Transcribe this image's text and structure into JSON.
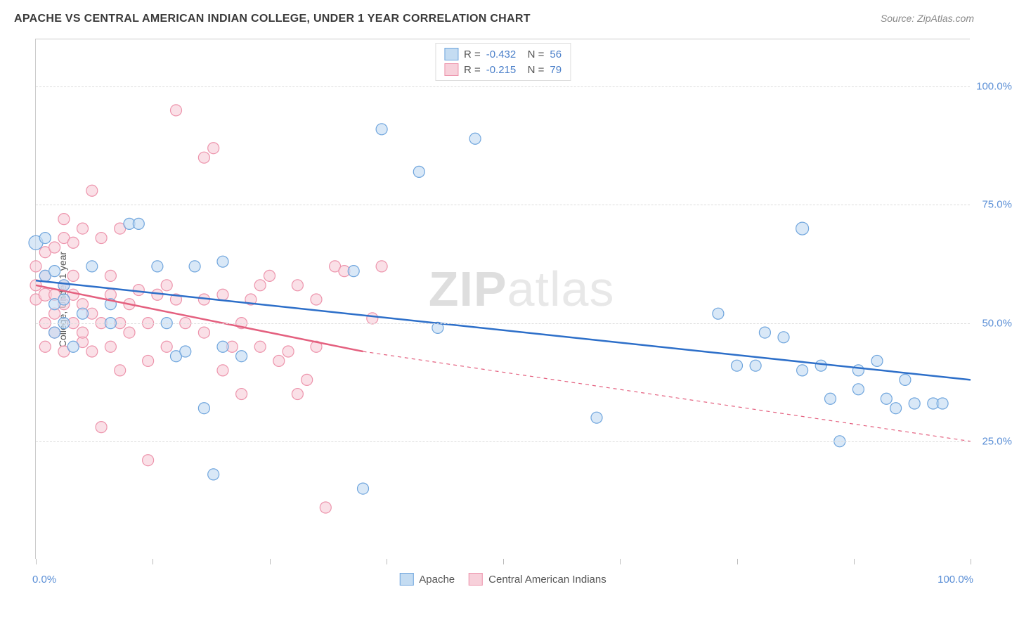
{
  "header": {
    "title": "APACHE VS CENTRAL AMERICAN INDIAN COLLEGE, UNDER 1 YEAR CORRELATION CHART",
    "source": "Source: ZipAtlas.com"
  },
  "chart": {
    "type": "scatter",
    "yaxis_title": "College, Under 1 year",
    "watermark": "ZIPatlas",
    "background_color": "#ffffff",
    "grid_color": "#dddddd",
    "axis_color": "#cccccc",
    "label_color": "#5b8fd6",
    "xlim": [
      0,
      100
    ],
    "ylim": [
      0,
      110
    ],
    "yticks": [
      25,
      50,
      75,
      100
    ],
    "ytick_labels": [
      "25.0%",
      "50.0%",
      "75.0%",
      "100.0%"
    ],
    "xticks": [
      0,
      12.5,
      25,
      37.5,
      50,
      62.5,
      75,
      87.5,
      100
    ],
    "xaxis_label_left": "0.0%",
    "xaxis_label_right": "100.0%",
    "series": {
      "apache": {
        "label": "Apache",
        "fill": "#c4dcf2",
        "stroke": "#6fa5dd",
        "line_color": "#2d6fc9",
        "R": "-0.432",
        "N": "56",
        "regression": {
          "x1": 0,
          "y1": 59,
          "x2": 100,
          "y2": 38
        },
        "points": [
          [
            0,
            67,
            14
          ],
          [
            1,
            60,
            10
          ],
          [
            1,
            68,
            10
          ],
          [
            2,
            48,
            10
          ],
          [
            2,
            54,
            10
          ],
          [
            2,
            61,
            10
          ],
          [
            3,
            50,
            10
          ],
          [
            3,
            55,
            10
          ],
          [
            3,
            58,
            10
          ],
          [
            4,
            45,
            10
          ],
          [
            5,
            52,
            10
          ],
          [
            6,
            62,
            10
          ],
          [
            8,
            50,
            10
          ],
          [
            8,
            54,
            10
          ],
          [
            10,
            71,
            10
          ],
          [
            11,
            71,
            10
          ],
          [
            13,
            62,
            10
          ],
          [
            14,
            50,
            10
          ],
          [
            15,
            43,
            10
          ],
          [
            16,
            44,
            10
          ],
          [
            17,
            62,
            10
          ],
          [
            18,
            32,
            10
          ],
          [
            19,
            18,
            10
          ],
          [
            20,
            63,
            10
          ],
          [
            20,
            45,
            10
          ],
          [
            22,
            43,
            10
          ],
          [
            34,
            61,
            10
          ],
          [
            35,
            15,
            10
          ],
          [
            37,
            91,
            10
          ],
          [
            41,
            82,
            10
          ],
          [
            43,
            49,
            10
          ],
          [
            47,
            89,
            10
          ],
          [
            60,
            30,
            10
          ],
          [
            73,
            52,
            10
          ],
          [
            75,
            41,
            10
          ],
          [
            77,
            41,
            10
          ],
          [
            78,
            48,
            10
          ],
          [
            80,
            47,
            10
          ],
          [
            82,
            40,
            10
          ],
          [
            82,
            70,
            12
          ],
          [
            84,
            41,
            10
          ],
          [
            85,
            34,
            10
          ],
          [
            86,
            25,
            10
          ],
          [
            88,
            36,
            10
          ],
          [
            88,
            40,
            10
          ],
          [
            90,
            42,
            10
          ],
          [
            91,
            34,
            10
          ],
          [
            92,
            32,
            10
          ],
          [
            93,
            38,
            10
          ],
          [
            94,
            33,
            10
          ],
          [
            96,
            33,
            10
          ],
          [
            97,
            33,
            10
          ]
        ]
      },
      "central": {
        "label": "Central American Indians",
        "fill": "#f7d0da",
        "stroke": "#ed94ac",
        "line_color": "#e4607f",
        "R": "-0.215",
        "N": "79",
        "regression_solid": {
          "x1": 0,
          "y1": 58,
          "x2": 35,
          "y2": 44
        },
        "regression_dashed": {
          "x1": 35,
          "y1": 44,
          "x2": 100,
          "y2": 25
        },
        "points": [
          [
            0,
            55,
            10
          ],
          [
            0,
            58,
            10
          ],
          [
            0,
            62,
            10
          ],
          [
            1,
            56,
            12
          ],
          [
            1,
            50,
            10
          ],
          [
            1,
            45,
            10
          ],
          [
            1,
            60,
            10
          ],
          [
            1,
            65,
            10
          ],
          [
            2,
            52,
            10
          ],
          [
            2,
            56,
            10
          ],
          [
            2,
            48,
            10
          ],
          [
            2,
            66,
            10
          ],
          [
            3,
            54,
            10
          ],
          [
            3,
            58,
            10
          ],
          [
            3,
            44,
            10
          ],
          [
            3,
            68,
            10
          ],
          [
            3,
            72,
            10
          ],
          [
            4,
            56,
            10
          ],
          [
            4,
            50,
            10
          ],
          [
            4,
            60,
            10
          ],
          [
            4,
            67,
            10
          ],
          [
            5,
            46,
            10
          ],
          [
            5,
            54,
            10
          ],
          [
            5,
            48,
            10
          ],
          [
            5,
            70,
            10
          ],
          [
            6,
            52,
            10
          ],
          [
            6,
            44,
            10
          ],
          [
            6,
            78,
            10
          ],
          [
            7,
            28,
            10
          ],
          [
            7,
            50,
            10
          ],
          [
            7,
            68,
            10
          ],
          [
            8,
            45,
            10
          ],
          [
            8,
            56,
            10
          ],
          [
            8,
            60,
            10
          ],
          [
            9,
            40,
            10
          ],
          [
            9,
            50,
            10
          ],
          [
            9,
            70,
            10
          ],
          [
            10,
            48,
            10
          ],
          [
            10,
            54,
            10
          ],
          [
            11,
            57,
            10
          ],
          [
            12,
            42,
            10
          ],
          [
            12,
            50,
            10
          ],
          [
            12,
            21,
            10
          ],
          [
            13,
            56,
            10
          ],
          [
            14,
            58,
            10
          ],
          [
            14,
            45,
            10
          ],
          [
            15,
            95,
            10
          ],
          [
            15,
            55,
            10
          ],
          [
            16,
            50,
            10
          ],
          [
            18,
            85,
            10
          ],
          [
            18,
            48,
            10
          ],
          [
            18,
            55,
            10
          ],
          [
            19,
            87,
            10
          ],
          [
            20,
            56,
            10
          ],
          [
            20,
            40,
            10
          ],
          [
            21,
            45,
            10
          ],
          [
            22,
            50,
            10
          ],
          [
            22,
            35,
            10
          ],
          [
            23,
            55,
            10
          ],
          [
            24,
            45,
            10
          ],
          [
            24,
            58,
            10
          ],
          [
            25,
            60,
            10
          ],
          [
            26,
            42,
            10
          ],
          [
            27,
            44,
            10
          ],
          [
            28,
            35,
            10
          ],
          [
            28,
            58,
            10
          ],
          [
            29,
            38,
            10
          ],
          [
            30,
            45,
            10
          ],
          [
            30,
            55,
            10
          ],
          [
            31,
            11,
            10
          ],
          [
            32,
            62,
            10
          ],
          [
            33,
            61,
            10
          ],
          [
            36,
            51,
            10
          ],
          [
            37,
            62,
            10
          ]
        ]
      }
    }
  },
  "legend_top_rows": [
    {
      "swatch_fill": "#c4dcf2",
      "swatch_stroke": "#6fa5dd",
      "R": "-0.432",
      "N": "56"
    },
    {
      "swatch_fill": "#f7d0da",
      "swatch_stroke": "#ed94ac",
      "R": "-0.215",
      "N": "79"
    }
  ]
}
